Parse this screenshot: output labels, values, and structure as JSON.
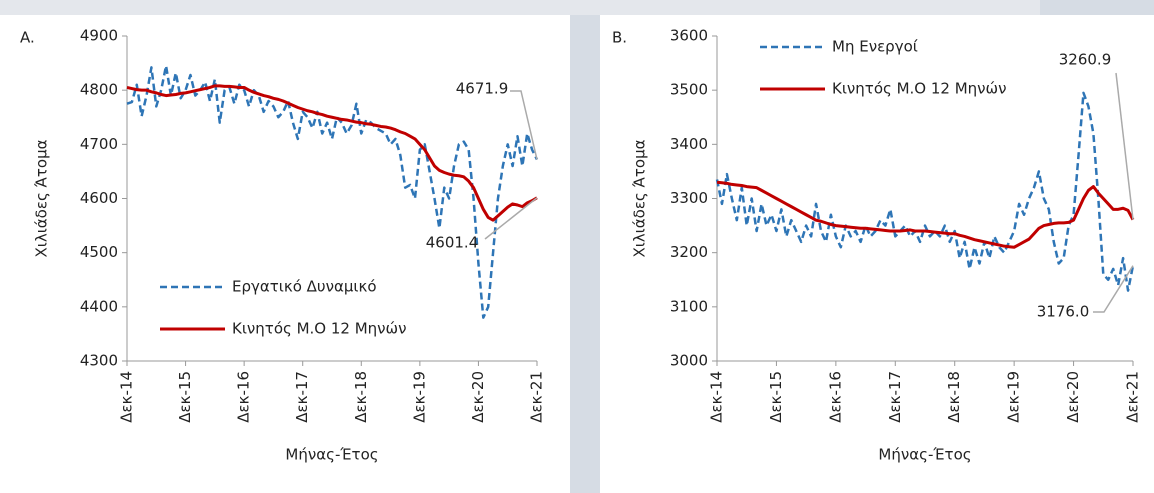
{
  "chart_data": [
    {
      "type": "line",
      "label": "A.",
      "ylabel": "Χιλιάδες Άτομα",
      "xlabel": "Μήνας-Έτος",
      "categories": [
        "Δεκ-14",
        null,
        null,
        null,
        null,
        null,
        null,
        null,
        null,
        null,
        null,
        null,
        "Δεκ-15",
        null,
        null,
        null,
        null,
        null,
        null,
        null,
        null,
        null,
        null,
        null,
        "Δεκ-16",
        null,
        null,
        null,
        null,
        null,
        null,
        null,
        null,
        null,
        null,
        null,
        "Δεκ-17",
        null,
        null,
        null,
        null,
        null,
        null,
        null,
        null,
        null,
        null,
        null,
        "Δεκ-18",
        null,
        null,
        null,
        null,
        null,
        null,
        null,
        null,
        null,
        null,
        null,
        "Δεκ-19",
        null,
        null,
        null,
        null,
        null,
        null,
        null,
        null,
        null,
        null,
        null,
        "Δεκ-20",
        null,
        null,
        null,
        null,
        null,
        null,
        null,
        null,
        null,
        null,
        null,
        "Δεκ-21"
      ],
      "series": [
        {
          "name": "Εργατικό Δυναμικό",
          "color": "#2e75b6",
          "line_style": "dashed",
          "values": [
            4775,
            4778,
            4810,
            4752,
            4790,
            4842,
            4770,
            4800,
            4845,
            4790,
            4832,
            4785,
            4800,
            4828,
            4790,
            4800,
            4815,
            4780,
            4820,
            4740,
            4800,
            4805,
            4775,
            4810,
            4800,
            4770,
            4800,
            4790,
            4760,
            4780,
            4770,
            4750,
            4760,
            4780,
            4740,
            4710,
            4760,
            4750,
            4730,
            4760,
            4720,
            4740,
            4710,
            4750,
            4740,
            4720,
            4735,
            4775,
            4720,
            4745,
            4740,
            4730,
            4725,
            4720,
            4700,
            4710,
            4680,
            4620,
            4625,
            4600,
            4690,
            4700,
            4650,
            4600,
            4545,
            4620,
            4600,
            4660,
            4700,
            4705,
            4690,
            4600,
            4480,
            4380,
            4400,
            4500,
            4600,
            4660,
            4700,
            4660,
            4715,
            4660,
            4720,
            4690,
            4671.9
          ]
        },
        {
          "name": "Κινητός Μ.Ο 12 Μηνών",
          "color": "#c00000",
          "line_style": "solid",
          "values": [
            4805,
            4803,
            4801,
            4800,
            4800,
            4797,
            4795,
            4792,
            4790,
            4791,
            4792,
            4794,
            4795,
            4797,
            4799,
            4801,
            4803,
            4805,
            4808,
            4808,
            4807,
            4807,
            4806,
            4805,
            4805,
            4800,
            4796,
            4793,
            4790,
            4788,
            4785,
            4783,
            4780,
            4776,
            4772,
            4768,
            4765,
            4762,
            4760,
            4757,
            4755,
            4752,
            4750,
            4748,
            4746,
            4745,
            4743,
            4741,
            4740,
            4738,
            4737,
            4735,
            4733,
            4732,
            4730,
            4727,
            4723,
            4720,
            4715,
            4710,
            4700,
            4690,
            4675,
            4660,
            4652,
            4648,
            4645,
            4643,
            4642,
            4640,
            4632,
            4620,
            4600,
            4580,
            4565,
            4560,
            4568,
            4576,
            4584,
            4590,
            4588,
            4585,
            4592,
            4596,
            4601.4
          ]
        }
      ],
      "annotations": [
        "4671.9",
        "4601.4"
      ],
      "ylim": [
        4300,
        4900
      ],
      "yticks": [
        4300,
        4400,
        4500,
        4600,
        4700,
        4800,
        4900
      ],
      "grid": false,
      "legend": "lower left"
    },
    {
      "type": "line",
      "label": "B.",
      "ylabel": "Χιλιάδες Άτομα",
      "xlabel": "Μήνας-Έτος",
      "categories": [
        "Δεκ-14",
        null,
        null,
        null,
        null,
        null,
        null,
        null,
        null,
        null,
        null,
        null,
        "Δεκ-15",
        null,
        null,
        null,
        null,
        null,
        null,
        null,
        null,
        null,
        null,
        null,
        "Δεκ-16",
        null,
        null,
        null,
        null,
        null,
        null,
        null,
        null,
        null,
        null,
        null,
        "Δεκ-17",
        null,
        null,
        null,
        null,
        null,
        null,
        null,
        null,
        null,
        null,
        null,
        "Δεκ-18",
        null,
        null,
        null,
        null,
        null,
        null,
        null,
        null,
        null,
        null,
        null,
        "Δεκ-19",
        null,
        null,
        null,
        null,
        null,
        null,
        null,
        null,
        null,
        null,
        null,
        "Δεκ-20",
        null,
        null,
        null,
        null,
        null,
        null,
        null,
        null,
        null,
        null,
        null,
        "Δεκ-21"
      ],
      "series": [
        {
          "name": "Μη Ενεργοί",
          "color": "#2e75b6",
          "line_style": "dashed",
          "values": [
            3335,
            3290,
            3345,
            3300,
            3260,
            3320,
            3250,
            3300,
            3240,
            3290,
            3250,
            3270,
            3240,
            3280,
            3230,
            3260,
            3240,
            3220,
            3250,
            3230,
            3290,
            3240,
            3220,
            3270,
            3230,
            3210,
            3250,
            3230,
            3240,
            3220,
            3250,
            3230,
            3240,
            3260,
            3250,
            3280,
            3230,
            3240,
            3250,
            3230,
            3240,
            3220,
            3250,
            3230,
            3240,
            3230,
            3250,
            3220,
            3240,
            3190,
            3220,
            3170,
            3210,
            3180,
            3220,
            3190,
            3230,
            3210,
            3200,
            3220,
            3240,
            3290,
            3270,
            3300,
            3320,
            3350,
            3300,
            3280,
            3220,
            3180,
            3190,
            3250,
            3270,
            3380,
            3495,
            3470,
            3420,
            3300,
            3160,
            3150,
            3170,
            3140,
            3190,
            3130,
            3176
          ]
        },
        {
          "name": "Κινητός Μ.Ο 12 Μηνών",
          "color": "#c00000",
          "line_style": "solid",
          "values": [
            3330,
            3329,
            3328,
            3326,
            3325,
            3324,
            3322,
            3321,
            3320,
            3315,
            3310,
            3305,
            3300,
            3295,
            3290,
            3285,
            3280,
            3275,
            3270,
            3265,
            3260,
            3258,
            3255,
            3252,
            3250,
            3249,
            3248,
            3247,
            3246,
            3245,
            3245,
            3244,
            3243,
            3242,
            3241,
            3240,
            3240,
            3240,
            3241,
            3242,
            3240,
            3240,
            3240,
            3239,
            3238,
            3237,
            3236,
            3235,
            3235,
            3232,
            3230,
            3227,
            3224,
            3222,
            3220,
            3218,
            3216,
            3214,
            3212,
            3211,
            3210,
            3215,
            3220,
            3225,
            3235,
            3245,
            3250,
            3252,
            3254,
            3255,
            3255,
            3256,
            3260,
            3280,
            3300,
            3315,
            3322,
            3310,
            3300,
            3290,
            3280,
            3280,
            3282,
            3278,
            3260.9
          ]
        }
      ],
      "annotations": [
        "3260.9",
        "3176.0"
      ],
      "ylim": [
        3000,
        3600
      ],
      "yticks": [
        3000,
        3100,
        3200,
        3300,
        3400,
        3500,
        3600
      ],
      "grid": false,
      "legend": "upper left"
    }
  ]
}
